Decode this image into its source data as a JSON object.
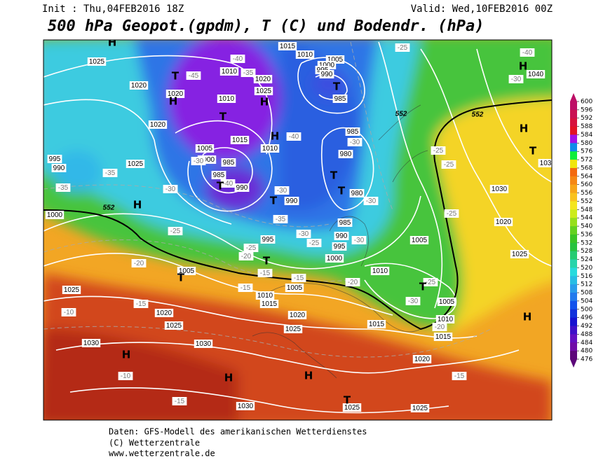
{
  "header": {
    "init": "Init : Thu,04FEB2016 18Z",
    "valid": "Valid: Wed,10FEB2016 00Z",
    "title": "500 hPa Geopot.(gpdm), T (C) und Bodendr. (hPa)"
  },
  "footer": [
    "Daten: GFS-Modell des amerikanischen Wetterdienstes",
    "(C) Wetterzentrale",
    "www.wetterzentrale.de"
  ],
  "colorbar": {
    "ticks": [
      600,
      596,
      592,
      588,
      584,
      580,
      576,
      572,
      568,
      564,
      560,
      556,
      552,
      548,
      544,
      540,
      536,
      532,
      528,
      524,
      520,
      516,
      512,
      508,
      504,
      500,
      496,
      492,
      488,
      484,
      480,
      476
    ]
  },
  "map": {
    "pressure_labels": [
      1025,
      1015,
      1010,
      1005,
      1000,
      995,
      990,
      1010,
      1020,
      1025,
      1010,
      1020,
      1020,
      985,
      1020,
      1015,
      1010,
      985,
      1005,
      1000,
      985,
      980,
      995,
      990,
      1025,
      985,
      990,
      980,
      1030,
      990,
      1000,
      985,
      990,
      995,
      995,
      1005,
      1020,
      1000,
      1005,
      1010,
      1025,
      1025,
      1010,
      1005,
      1015,
      1005,
      1020,
      1020,
      1025,
      1010,
      1015,
      1025,
      1015,
      1030,
      1030,
      1020,
      1030,
      1025,
      1025,
      1040,
      103
    ],
    "temperature_labels": [
      -40,
      -25,
      -40,
      -35,
      -45,
      -30,
      -40,
      -30,
      -35,
      -30,
      -40,
      -35,
      -30,
      -30,
      -30,
      -25,
      -25,
      -35,
      -25,
      -30,
      -30,
      -25,
      -25,
      -25,
      -20,
      -20,
      -15,
      -15,
      -20,
      -25,
      -15,
      -30,
      -20,
      -15,
      -10,
      -10,
      -15,
      -15
    ],
    "contour_labels": [
      552,
      552,
      552
    ],
    "centers": [
      "H",
      "T",
      "H",
      "T",
      "H",
      "T",
      "H",
      "H",
      "T",
      "T",
      "T",
      "T",
      "H",
      "T",
      "T",
      "T",
      "T",
      "H",
      "H",
      "H",
      "H",
      "T",
      "H"
    ]
  }
}
